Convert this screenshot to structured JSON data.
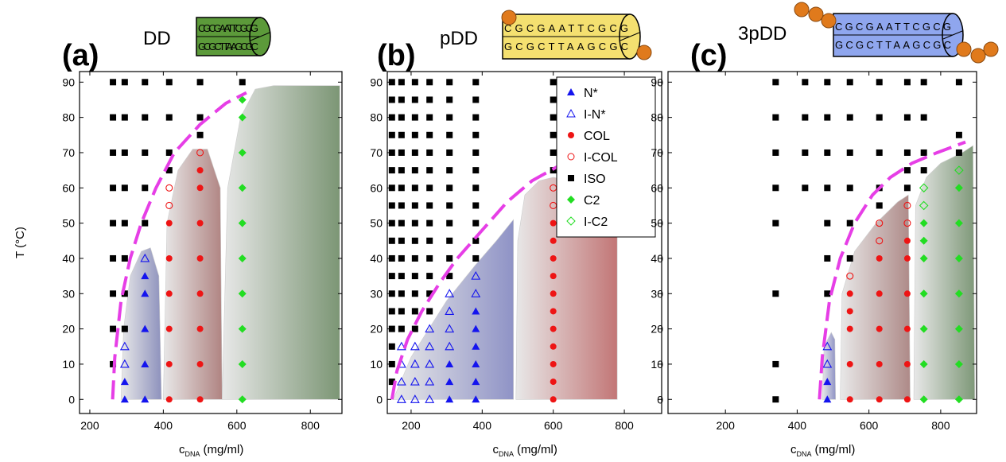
{
  "chart_data": [
    {
      "type": "scatter",
      "label": "(a)",
      "molecule": "DD",
      "sequence_top": "CGCGAATTCGCG",
      "sequence_bottom": "GCGCTTAAGCGC",
      "molecule_color": "#5c9a3a",
      "y_label": "T (°C)",
      "x_label": {
        "main": "c",
        "sub": "DNA",
        "unit": "(mg/ml)"
      },
      "xlim": [
        172,
        886
      ],
      "ylim": [
        -4,
        93
      ],
      "xticks": [
        200,
        400,
        600,
        800
      ],
      "yticks": [
        0,
        10,
        20,
        30,
        40,
        50,
        60,
        70,
        80,
        90
      ],
      "regions": [
        {
          "color": "#8e92bd",
          "x": [
            285,
            292,
            310,
            340,
            365,
            388,
            395
          ],
          "y": [
            0,
            20,
            35,
            42,
            43,
            35,
            0
          ]
        },
        {
          "color": "#b08482",
          "x": [
            400,
            410,
            440,
            480,
            520,
            555,
            560
          ],
          "y": [
            0,
            50,
            65,
            71,
            71,
            60,
            0
          ]
        },
        {
          "color": "#7c9675",
          "x": [
            560,
            575,
            610,
            650,
            700,
            880,
            880
          ],
          "y": [
            0,
            60,
            80,
            88,
            89,
            89,
            0
          ]
        }
      ],
      "boundary": {
        "color": "#e63ee6",
        "x": [
          262,
          268,
          285,
          310,
          340,
          380,
          430,
          500,
          570,
          626
        ],
        "values": [
          0,
          12,
          28,
          40,
          50,
          60,
          70,
          78,
          84,
          87
        ]
      },
      "series": [
        {
          "marker": "square",
          "color": "#000000",
          "x": [
            263,
            263,
            263,
            263,
            263,
            263,
            263,
            263,
            263,
            295,
            295,
            295,
            295,
            295,
            295,
            295,
            295,
            350,
            350,
            350,
            350,
            350,
            416,
            416,
            416,
            416,
            500,
            500,
            500,
            615
          ],
          "values": [
            90,
            80,
            70,
            60,
            50,
            40,
            30,
            20,
            10,
            90,
            80,
            70,
            60,
            50,
            40,
            30,
            20,
            90,
            80,
            70,
            60,
            50,
            90,
            80,
            70,
            65,
            90,
            80,
            75,
            90
          ]
        },
        {
          "marker": "triangle",
          "color": "#1414ee",
          "x": [
            295,
            295,
            350,
            350,
            350,
            350,
            350
          ],
          "values": [
            5,
            0,
            35,
            30,
            20,
            10,
            0
          ]
        },
        {
          "marker": "triangle-open",
          "color": "#1414ee",
          "x": [
            295,
            295,
            350
          ],
          "values": [
            15,
            10,
            40
          ]
        },
        {
          "marker": "circle",
          "color": "#ee1414",
          "x": [
            416,
            416,
            416,
            416,
            416,
            416,
            500,
            500,
            500,
            500,
            500,
            500,
            500,
            500
          ],
          "values": [
            50,
            40,
            30,
            20,
            10,
            0,
            65,
            60,
            50,
            40,
            30,
            20,
            10,
            0
          ]
        },
        {
          "marker": "circle-open",
          "color": "#ee1414",
          "x": [
            416,
            416,
            500
          ],
          "values": [
            60,
            55,
            70
          ]
        },
        {
          "marker": "diamond",
          "color": "#22dd22",
          "x": [
            615,
            615,
            615,
            615,
            615,
            615,
            615,
            615,
            615,
            615
          ],
          "values": [
            85,
            80,
            70,
            60,
            50,
            40,
            30,
            20,
            10,
            0
          ]
        }
      ]
    },
    {
      "type": "scatter",
      "label": "(b)",
      "molecule": "pDD",
      "sequence_top": "CGCGAATTCGCG",
      "sequence_bottom": "GCGCTTAAGCGC",
      "molecule_color": "#f4e070",
      "x_label": {
        "main": "c",
        "sub": "DNA",
        "unit": "(mg/ml)"
      },
      "xlim": [
        133,
        905
      ],
      "ylim": [
        -4,
        93
      ],
      "xticks": [
        200,
        400,
        600,
        800
      ],
      "yticks": [
        0,
        10,
        20,
        30,
        40,
        50,
        60,
        70,
        80,
        90
      ],
      "legend": "upper right",
      "regions": [
        {
          "color": "#8f93c6",
          "x": [
            150,
            200,
            250,
            300,
            380,
            440,
            480,
            488,
            488
          ],
          "y": [
            0,
            12,
            20,
            28,
            38,
            45,
            50,
            51,
            0
          ]
        },
        {
          "color": "#c27676",
          "x": [
            495,
            500,
            520,
            560,
            600,
            650,
            780,
            780
          ],
          "y": [
            0,
            45,
            58,
            62,
            63,
            62,
            60,
            0
          ]
        }
      ],
      "boundary": {
        "color": "#e63ee6",
        "x": [
          146,
          160,
          190,
          230,
          280,
          330,
          400,
          470,
          540,
          611
        ],
        "values": [
          0,
          8,
          17,
          25,
          33,
          40,
          48,
          56,
          62,
          66
        ]
      },
      "series": [
        {
          "name": "N*",
          "marker": "triangle",
          "color": "#1414ee",
          "x": [
            308,
            308,
            308,
            382,
            382,
            382,
            382,
            382,
            382
          ],
          "values": [
            10,
            5,
            0,
            25,
            20,
            15,
            10,
            5,
            0
          ]
        },
        {
          "name": "I-N*",
          "marker": "triangle-open",
          "color": "#1414ee",
          "x": [
            173,
            173,
            173,
            173,
            211,
            211,
            211,
            211,
            252,
            252,
            252,
            252,
            252,
            308,
            308,
            308,
            308,
            382,
            382
          ],
          "values": [
            15,
            10,
            5,
            0,
            15,
            10,
            5,
            0,
            20,
            15,
            10,
            5,
            0,
            30,
            25,
            20,
            15,
            35,
            30
          ]
        },
        {
          "name": "COL",
          "marker": "circle",
          "color": "#ee1414",
          "x": [
            600,
            600,
            600,
            600,
            600,
            600,
            600,
            600,
            600,
            600,
            600
          ],
          "values": [
            50,
            45,
            40,
            35,
            30,
            25,
            20,
            15,
            10,
            5,
            0
          ]
        },
        {
          "name": "I-COL",
          "marker": "circle-open",
          "color": "#ee1414",
          "x": [
            600,
            600
          ],
          "values": [
            60,
            55
          ]
        },
        {
          "name": "ISO",
          "marker": "square",
          "color": "#000000",
          "x": [
            146,
            146,
            146,
            146,
            146,
            146,
            146,
            146,
            146,
            146,
            146,
            146,
            146,
            146,
            146,
            146,
            146,
            146,
            173,
            173,
            173,
            173,
            173,
            173,
            173,
            173,
            173,
            173,
            173,
            173,
            173,
            173,
            173,
            211,
            211,
            211,
            211,
            211,
            211,
            211,
            211,
            211,
            211,
            211,
            211,
            211,
            211,
            211,
            252,
            252,
            252,
            252,
            252,
            252,
            252,
            252,
            252,
            252,
            252,
            252,
            252,
            252,
            308,
            308,
            308,
            308,
            308,
            308,
            308,
            308,
            308,
            308,
            308,
            308,
            382,
            382,
            382,
            382,
            382,
            382,
            382,
            382,
            382,
            382,
            382,
            600,
            600,
            600,
            600,
            600,
            600
          ],
          "values": [
            90,
            85,
            80,
            75,
            70,
            65,
            60,
            55,
            50,
            45,
            40,
            35,
            30,
            25,
            20,
            15,
            10,
            5,
            90,
            85,
            80,
            75,
            70,
            65,
            60,
            55,
            50,
            45,
            40,
            35,
            30,
            25,
            20,
            90,
            85,
            80,
            75,
            70,
            65,
            60,
            55,
            50,
            45,
            40,
            35,
            30,
            25,
            20,
            90,
            85,
            80,
            75,
            70,
            65,
            60,
            55,
            50,
            45,
            40,
            35,
            30,
            25,
            90,
            85,
            80,
            75,
            70,
            65,
            60,
            55,
            50,
            45,
            40,
            35,
            90,
            85,
            80,
            75,
            70,
            65,
            60,
            55,
            50,
            45,
            40,
            90,
            85,
            80,
            75,
            70,
            65
          ]
        },
        {
          "name": "C2",
          "marker": "diamond",
          "color": "#22dd22",
          "x": [],
          "values": []
        },
        {
          "name": "I-C2",
          "marker": "diamond-open",
          "color": "#22dd22",
          "x": [],
          "values": []
        }
      ]
    },
    {
      "type": "scatter",
      "label": "(c)",
      "molecule": "3pDD",
      "sequence_top": "CGCGAATTCGCG",
      "sequence_bottom": "GCGCTTAAGCGC",
      "molecule_color": "#8fa6ee",
      "x_label": {
        "main": "c",
        "sub": "DNA",
        "unit": "(mg/ml)"
      },
      "xlim": [
        40,
        900
      ],
      "ylim": [
        -4,
        93
      ],
      "xticks": [
        200,
        400,
        600,
        800
      ],
      "yticks": [
        0,
        10,
        20,
        30,
        40,
        50,
        60,
        70,
        80,
        90
      ],
      "regions": [
        {
          "color": "#8f93c6",
          "x": [
            470,
            475,
            495,
            505,
            507
          ],
          "y": [
            0,
            15,
            19,
            17,
            0
          ]
        },
        {
          "color": "#ae8a88",
          "x": [
            520,
            525,
            560,
            620,
            680,
            710,
            715
          ],
          "y": [
            0,
            30,
            42,
            50,
            56,
            58,
            0
          ]
        },
        {
          "color": "#7e9878",
          "x": [
            725,
            730,
            760,
            800,
            860,
            890,
            895
          ],
          "y": [
            0,
            55,
            63,
            67,
            70,
            72,
            0
          ]
        }
      ],
      "boundary": {
        "color": "#e63ee6",
        "x": [
          462,
          470,
          490,
          520,
          560,
          610,
          660,
          720,
          790,
          869
        ],
        "values": [
          0,
          12,
          28,
          40,
          50,
          58,
          63,
          67,
          70,
          73
        ]
      },
      "series": [
        {
          "marker": "square",
          "color": "#000000",
          "x": [
            340,
            340,
            340,
            340,
            340,
            340,
            340,
            340,
            422,
            422,
            422,
            422,
            484,
            484,
            484,
            484,
            484,
            484,
            484,
            547,
            547,
            547,
            547,
            547,
            547,
            629,
            629,
            629,
            629,
            629,
            707,
            707,
            707,
            707,
            707,
            753,
            753,
            753,
            753,
            851,
            851,
            851
          ],
          "values": [
            90,
            80,
            70,
            60,
            50,
            30,
            10,
            0,
            90,
            80,
            70,
            60,
            90,
            80,
            70,
            60,
            50,
            40,
            30,
            90,
            80,
            70,
            60,
            50,
            40,
            90,
            80,
            70,
            60,
            55,
            90,
            80,
            70,
            65,
            60,
            90,
            80,
            70,
            65,
            90,
            75,
            70
          ]
        },
        {
          "marker": "triangle",
          "color": "#1414ee",
          "x": [
            484,
            484
          ],
          "values": [
            5,
            0
          ]
        },
        {
          "marker": "triangle-open",
          "color": "#1414ee",
          "x": [
            484,
            484
          ],
          "values": [
            15,
            10
          ]
        },
        {
          "marker": "circle",
          "color": "#ee1414",
          "x": [
            547,
            547,
            547,
            547,
            547,
            629,
            629,
            629,
            629,
            629,
            707,
            707,
            707,
            707,
            707,
            707
          ],
          "values": [
            30,
            25,
            20,
            10,
            0,
            40,
            30,
            20,
            10,
            0,
            45,
            40,
            30,
            20,
            10,
            0
          ]
        },
        {
          "marker": "circle-open",
          "color": "#ee1414",
          "x": [
            547,
            629,
            629,
            707,
            707
          ],
          "values": [
            35,
            50,
            45,
            55,
            50
          ]
        },
        {
          "marker": "diamond",
          "color": "#22dd22",
          "x": [
            753,
            753,
            753,
            753,
            753,
            753,
            753,
            851,
            851,
            851,
            851,
            851,
            851,
            851
          ],
          "values": [
            50,
            45,
            40,
            30,
            20,
            10,
            0,
            60,
            50,
            40,
            30,
            20,
            10,
            0
          ]
        },
        {
          "marker": "diamond-open",
          "color": "#22dd22",
          "x": [
            753,
            753,
            851
          ],
          "values": [
            60,
            55,
            65
          ]
        }
      ]
    }
  ]
}
